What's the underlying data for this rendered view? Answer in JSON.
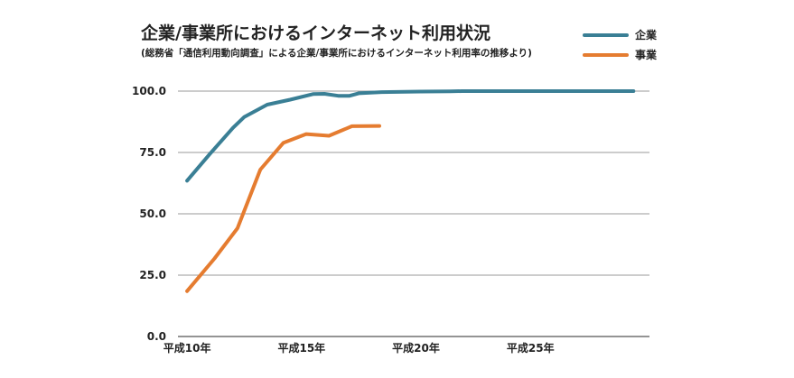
{
  "chart_data": {
    "type": "line",
    "title": "企業/事業所におけるインターネット利用状況",
    "subtitle": "(総務省「通信利用動向調査」による企業/事業所におけるインターネット利用率の推移より)",
    "xlabel": "",
    "ylabel": "",
    "x": [
      10,
      11,
      12,
      13,
      14,
      15,
      16,
      17,
      18,
      19,
      20,
      21,
      22,
      23,
      24,
      25,
      26,
      27,
      28,
      29
    ],
    "xlim": [
      9.6,
      30.2
    ],
    "x_ticks": [
      {
        "value": 10,
        "label": "平成10年"
      },
      {
        "value": 15,
        "label": "平成15年"
      },
      {
        "value": 20,
        "label": "平成20年"
      },
      {
        "value": 25,
        "label": "平成25年"
      }
    ],
    "ylim": [
      0,
      100
    ],
    "y_ticks": [
      {
        "value": 0,
        "label": "0.0"
      },
      {
        "value": 25,
        "label": "25.0"
      },
      {
        "value": 50,
        "label": "50.0"
      },
      {
        "value": 75,
        "label": "75.0"
      },
      {
        "value": 100,
        "label": "100.0"
      }
    ],
    "grid": true,
    "legend_position": "top-right",
    "series": [
      {
        "name": "企業",
        "color": "#3a7f95",
        "points": [
          [
            10,
            63.5
          ],
          [
            11,
            74.5
          ],
          [
            12,
            85
          ],
          [
            12.5,
            89.5
          ],
          [
            13.5,
            94.5
          ],
          [
            14.5,
            96.5
          ],
          [
            15.5,
            98.8
          ],
          [
            16,
            98.9
          ],
          [
            16.6,
            98.1
          ],
          [
            17.1,
            98.1
          ],
          [
            17.5,
            99.1
          ],
          [
            18.5,
            99.6
          ],
          [
            20.2,
            99.8
          ],
          [
            21.5,
            99.9
          ],
          [
            22,
            100
          ],
          [
            23,
            100
          ],
          [
            24,
            100
          ],
          [
            25,
            100
          ],
          [
            26,
            100
          ],
          [
            27,
            100
          ],
          [
            28,
            100
          ],
          [
            29.5,
            100
          ]
        ]
      },
      {
        "name": "事業",
        "color": "#e57c30",
        "points": [
          [
            10,
            18.5
          ],
          [
            11.2,
            31.8
          ],
          [
            12.2,
            44.1
          ],
          [
            13.2,
            68
          ],
          [
            14.2,
            78.9
          ],
          [
            15.2,
            82.5
          ],
          [
            16.2,
            81.8
          ],
          [
            17.2,
            85.7
          ],
          [
            18.4,
            85.8
          ]
        ]
      }
    ]
  }
}
